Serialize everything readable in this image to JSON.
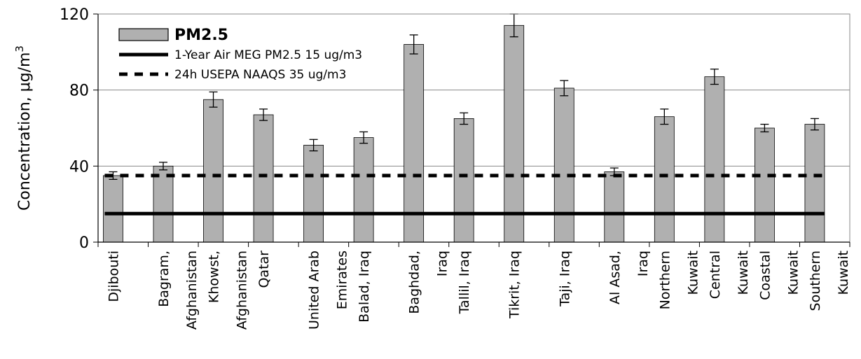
{
  "chart_data": {
    "type": "bar",
    "ylabel": "Concentration, μg/m³",
    "ylabel_parts": {
      "text": "Concentration, μg/m",
      "superscript": "3"
    },
    "ylim": [
      0,
      120
    ],
    "yticks": [
      "0",
      "40",
      "80",
      "120"
    ],
    "grid": true,
    "legend_position": "top-left",
    "categories": [
      [
        "Djibouti"
      ],
      [
        "Bagram,",
        "Afghanistan"
      ],
      [
        "Khowst,",
        "Afghanistan"
      ],
      [
        "Qatar"
      ],
      [
        "United Arab",
        "Emirates"
      ],
      [
        "Balad, Iraq"
      ],
      [
        "Baghdad,",
        "Iraq"
      ],
      [
        "Tallil, Iraq"
      ],
      [
        "Tikrit, Iraq"
      ],
      [
        "Taji, Iraq"
      ],
      [
        "Al Asad,",
        "Iraq"
      ],
      [
        "Northern",
        "Kuwait"
      ],
      [
        "Central",
        "Kuwait"
      ],
      [
        "Coastal",
        "Kuwait"
      ],
      [
        "Southern",
        "Kuwait"
      ]
    ],
    "series": [
      {
        "name": "PM2.5",
        "values": [
          35,
          40,
          75,
          67,
          51,
          55,
          104,
          65,
          114,
          81,
          37,
          66,
          87,
          60,
          62
        ],
        "errors": [
          2,
          2,
          4,
          3,
          3,
          3,
          5,
          3,
          6,
          4,
          2,
          4,
          4,
          2,
          3
        ],
        "color": "#b0b0b0"
      }
    ],
    "reference_lines": [
      {
        "name": "1-Year Air MEG PM2.5 15 ug/m3",
        "value": 15,
        "style": "solid"
      },
      {
        "name": "24h USEPA NAAQS 35 ug/m3",
        "value": 35,
        "style": "dashed"
      }
    ]
  }
}
